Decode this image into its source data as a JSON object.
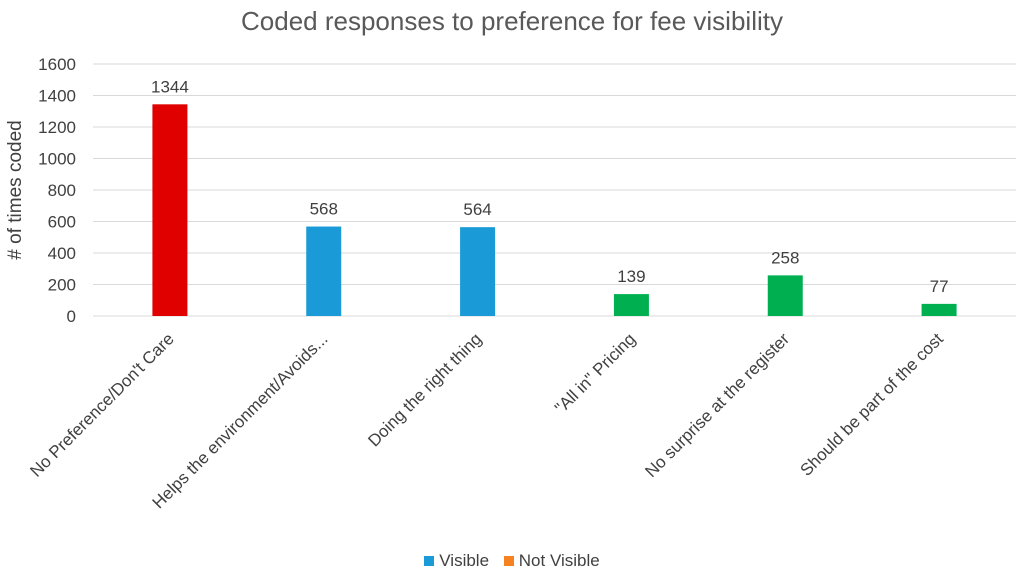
{
  "chart_data": {
    "type": "bar",
    "title": "Coded responses to preference for fee visibility",
    "xlabel": "",
    "ylabel": "# of times coded",
    "ylim": [
      0,
      1600
    ],
    "yticks": [
      0,
      200,
      400,
      600,
      800,
      1000,
      1200,
      1400,
      1600
    ],
    "grid": true,
    "categories": [
      "No Preference/Don't Care",
      "Helps the environment/Avoids...",
      "Doing the right thing",
      "\"All in\" Pricing",
      "No surprise at the register",
      "Should be part of the cost"
    ],
    "values": [
      1344,
      568,
      564,
      139,
      258,
      77
    ],
    "bar_colors": [
      "#e00000",
      "#1a9ad6",
      "#1a9ad6",
      "#00b050",
      "#00b050",
      "#00b050"
    ],
    "legend_position": "bottom",
    "legend": [
      {
        "name": "Visible",
        "color": "#1a9ad6"
      },
      {
        "name": "Not Visible",
        "color": "#f58220"
      }
    ]
  }
}
